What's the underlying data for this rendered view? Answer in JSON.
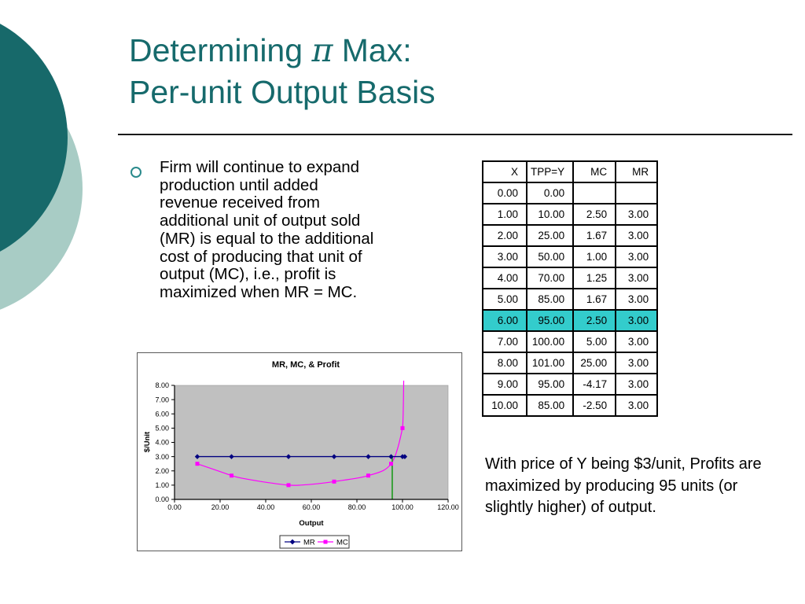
{
  "title": {
    "line1_pre": "Determining ",
    "pi": "π",
    "line1_post": " Max:",
    "line2": "Per-unit Output Basis"
  },
  "bullet": {
    "lines": [
      "Firm will continue to expand",
      "production until added",
      "revenue received from",
      "additional unit of output sold",
      "(MR) is equal to the additional",
      "cost of producing that unit of",
      "output (MC), i.e., profit is",
      "maximized when MR = MC."
    ]
  },
  "note": {
    "lines": [
      "With price of Y being $3/unit, Profits are",
      "maximized by producing 95 units (or",
      "slightly higher) of output."
    ]
  },
  "table": {
    "headers": [
      "X",
      "TPP=Y",
      "MC",
      "MR"
    ],
    "rows": [
      {
        "cells": [
          "0.00",
          "0.00",
          "",
          ""
        ],
        "highlight": false
      },
      {
        "cells": [
          "1.00",
          "10.00",
          "2.50",
          "3.00"
        ],
        "highlight": false
      },
      {
        "cells": [
          "2.00",
          "25.00",
          "1.67",
          "3.00"
        ],
        "highlight": false
      },
      {
        "cells": [
          "3.00",
          "50.00",
          "1.00",
          "3.00"
        ],
        "highlight": false
      },
      {
        "cells": [
          "4.00",
          "70.00",
          "1.25",
          "3.00"
        ],
        "highlight": false
      },
      {
        "cells": [
          "5.00",
          "85.00",
          "1.67",
          "3.00"
        ],
        "highlight": false
      },
      {
        "cells": [
          "6.00",
          "95.00",
          "2.50",
          "3.00"
        ],
        "highlight": true
      },
      {
        "cells": [
          "7.00",
          "100.00",
          "5.00",
          "3.00"
        ],
        "highlight": false
      },
      {
        "cells": [
          "8.00",
          "101.00",
          "25.00",
          "3.00"
        ],
        "highlight": false
      },
      {
        "cells": [
          "9.00",
          "95.00",
          "-4.17",
          "3.00"
        ],
        "highlight": false
      },
      {
        "cells": [
          "10.00",
          "85.00",
          "-2.50",
          "3.00"
        ],
        "highlight": false
      }
    ],
    "highlight_color": "#33CCCC"
  },
  "chart_data": {
    "type": "line",
    "title": "MR, MC, & Profit",
    "xlabel": "Output",
    "ylabel": "$/Unit",
    "xlim": [
      0,
      120
    ],
    "ylim": [
      0,
      8
    ],
    "x_tick_values": [
      0,
      20,
      40,
      60,
      80,
      100,
      120
    ],
    "x_ticks": [
      "0.00",
      "20.00",
      "40.00",
      "60.00",
      "80.00",
      "100.00",
      "120.00"
    ],
    "y_tick_values": [
      0,
      1,
      2,
      3,
      4,
      5,
      6,
      7,
      8
    ],
    "y_ticks": [
      "0.00",
      "1.00",
      "2.00",
      "3.00",
      "4.00",
      "5.00",
      "6.00",
      "7.00",
      "8.00"
    ],
    "grid": false,
    "plot_bg": "#C0C0C0",
    "legend_position": "bottom",
    "series": [
      {
        "name": "MR",
        "color": "#000080",
        "marker": "diamond",
        "smooth": false,
        "x": [
          10,
          25,
          50,
          70,
          85,
          95,
          100,
          101
        ],
        "y": [
          3.0,
          3.0,
          3.0,
          3.0,
          3.0,
          3.0,
          3.0,
          3.0
        ]
      },
      {
        "name": "MC",
        "color": "#FF00FF",
        "marker": "square",
        "smooth": true,
        "x": [
          10,
          25,
          50,
          70,
          85,
          95,
          100,
          101
        ],
        "y": [
          2.5,
          1.67,
          1.0,
          1.25,
          1.67,
          2.5,
          5.0,
          25.0
        ]
      }
    ],
    "vline": {
      "x": 95.5,
      "y_from": 0,
      "y_to": 3,
      "color": "#3AA03A"
    }
  },
  "colors": {
    "accent_teal": "#166A6C",
    "circle_dark": "#17696A",
    "circle_light": "#A8CCC5",
    "table_highlight": "#33CCCC",
    "mr_series": "#000080",
    "mc_series": "#FF00FF",
    "profit_max_line": "#3AA03A",
    "plot_background": "#C0C0C0"
  }
}
